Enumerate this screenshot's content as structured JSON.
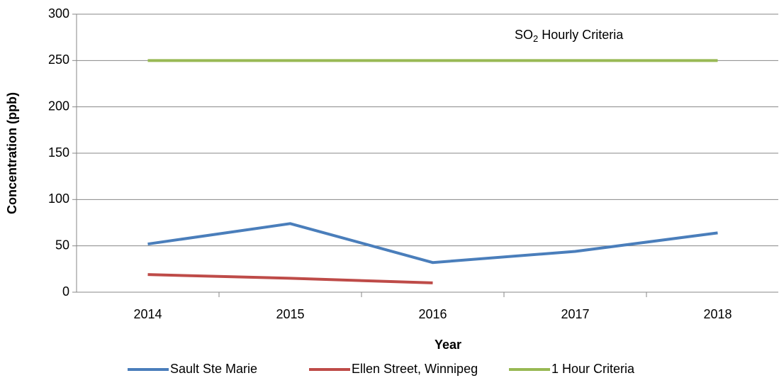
{
  "chart_data": {
    "type": "line",
    "x_label": "Year",
    "y_label": "Concentration (ppb)",
    "annotation": [
      "SO",
      "2",
      " Hourly Criteria"
    ],
    "categories": [
      "2014",
      "2015",
      "2016",
      "2017",
      "2018"
    ],
    "series": [
      {
        "name": "Sault Ste Marie",
        "color": "#4a7ebb",
        "values": [
          52,
          74,
          32,
          44,
          64
        ]
      },
      {
        "name": "Ellen Street, Winnipeg",
        "color": "#be4b48",
        "values": [
          19,
          15,
          10,
          null,
          null
        ]
      },
      {
        "name": "1 Hour Criteria",
        "color": "#98b954",
        "values": [
          250,
          250,
          250,
          250,
          250
        ]
      }
    ],
    "ylim": [
      0,
      300
    ],
    "yticks": [
      0,
      50,
      100,
      150,
      200,
      250,
      300
    ],
    "grid": true,
    "legend": "bottom"
  }
}
